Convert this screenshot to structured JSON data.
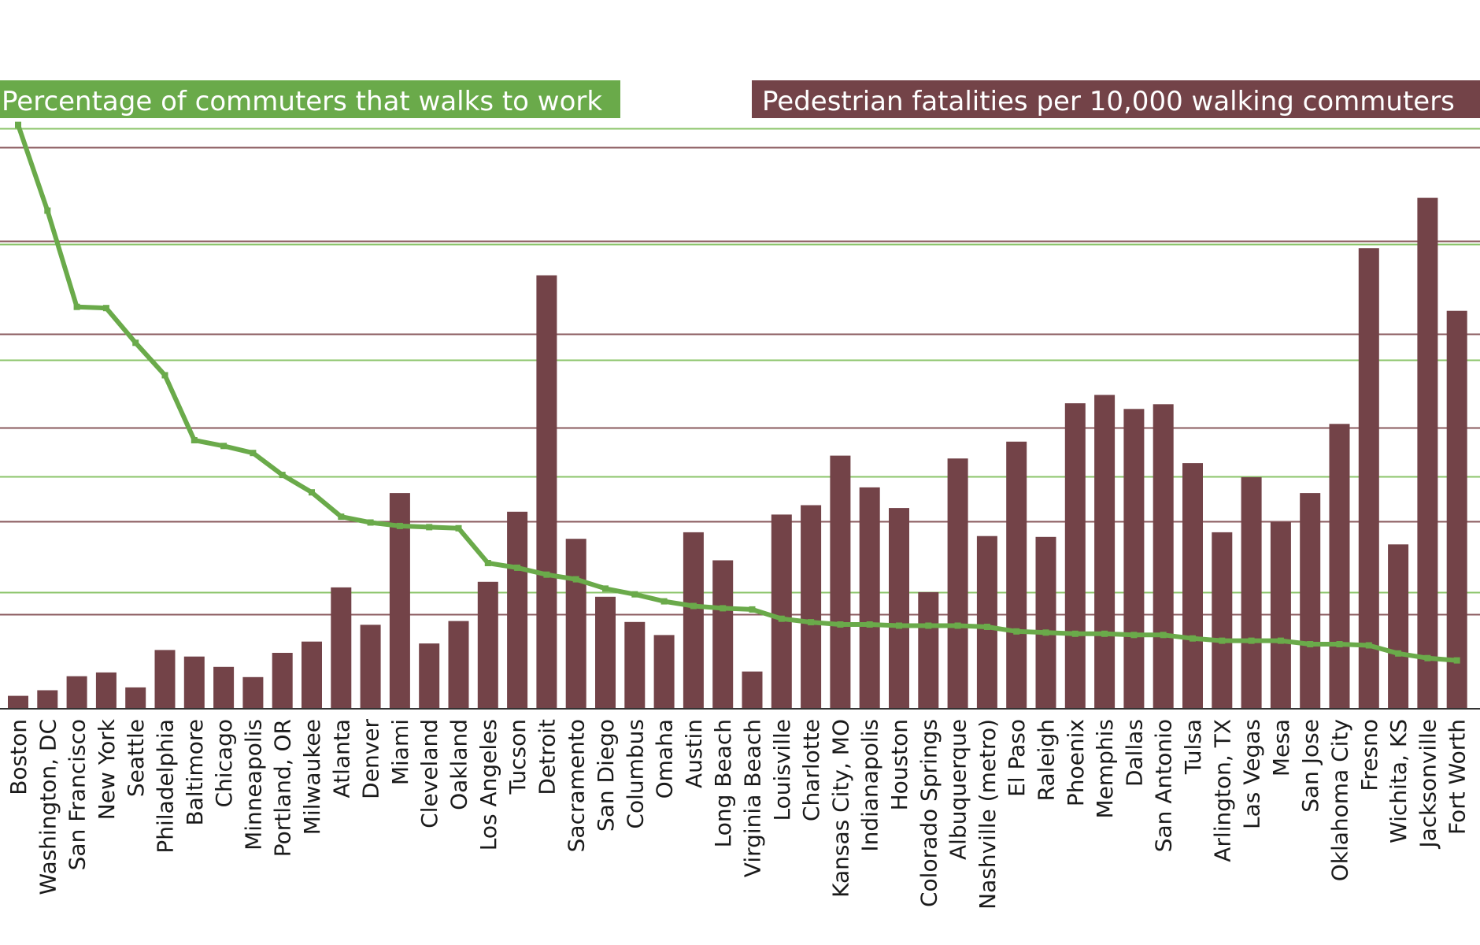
{
  "chart_data": {
    "type": "bar",
    "legend": {
      "walk_label": "Percentage of commuters that walks to work",
      "fatal_label": "Pedestrian fatalities per 10,000 walking commuters"
    },
    "colors": {
      "bar": "#734348",
      "line": "#6aaa4a",
      "green_grid": "#8bc46a",
      "maroon_grid": "#8a5a5e",
      "walk_legend_bg": "#6aaa4a",
      "fatal_legend_bg": "#734348",
      "axis": "#333333"
    },
    "grid": true,
    "axis_ranges_note": "no tick values printed",
    "fatal_ylim": [
      0,
      6
    ],
    "walk_ylim": [
      0,
      5
    ],
    "categories": [
      "Boston",
      "Washington, DC",
      "San Francisco",
      "New York",
      "Seattle",
      "Philadelphia",
      "Baltimore",
      "Chicago",
      "Minneapolis",
      "Portland, OR",
      "Milwaukee",
      "Atlanta",
      "Denver",
      "Miami",
      "Cleveland",
      "Oakland",
      "Los Angeles",
      "Tucson",
      "Detroit",
      "Sacramento",
      "San Diego",
      "Columbus",
      "Omaha",
      "Austin",
      "Long Beach",
      "Virginia Beach",
      "Louisville",
      "Charlotte",
      "Kansas City, MO",
      "Indianapolis",
      "Houston",
      "Colorado Springs",
      "Albuquerque",
      "Nashville (metro)",
      "El Paso",
      "Raleigh",
      "Phoenix",
      "Memphis",
      "Dallas",
      "San Antonio",
      "Tulsa",
      "Arlington, TX",
      "Las Vegas",
      "Mesa",
      "San Jose",
      "Oklahoma City",
      "Fresno",
      "Wichita, KS",
      "Jacksonville",
      "Fort Worth"
    ],
    "series": [
      {
        "kind": "bar",
        "values": [
          0.13,
          0.19,
          0.34,
          0.38,
          0.22,
          0.62,
          0.55,
          0.44,
          0.33,
          0.59,
          0.71,
          1.29,
          0.89,
          2.3,
          0.69,
          0.93,
          1.35,
          2.1,
          4.63,
          1.81,
          1.19,
          0.92,
          0.78,
          1.88,
          1.58,
          0.39,
          2.07,
          2.17,
          2.7,
          2.36,
          2.14,
          1.24,
          2.67,
          1.84,
          2.85,
          1.83,
          3.26,
          3.35,
          3.2,
          3.25,
          2.62,
          1.88,
          2.47,
          1.99,
          2.3,
          3.04,
          4.92,
          1.75,
          5.46,
          4.25
        ]
      },
      {
        "kind": "line",
        "values": [
          5.03,
          4.29,
          3.46,
          3.45,
          3.15,
          2.87,
          2.31,
          2.26,
          2.2,
          2.01,
          1.86,
          1.65,
          1.6,
          1.57,
          1.56,
          1.55,
          1.25,
          1.21,
          1.15,
          1.11,
          1.03,
          0.98,
          0.92,
          0.88,
          0.86,
          0.85,
          0.77,
          0.74,
          0.72,
          0.72,
          0.71,
          0.71,
          0.71,
          0.7,
          0.66,
          0.65,
          0.64,
          0.64,
          0.63,
          0.63,
          0.6,
          0.58,
          0.58,
          0.58,
          0.55,
          0.55,
          0.54,
          0.47,
          0.43,
          0.41
        ]
      }
    ]
  }
}
